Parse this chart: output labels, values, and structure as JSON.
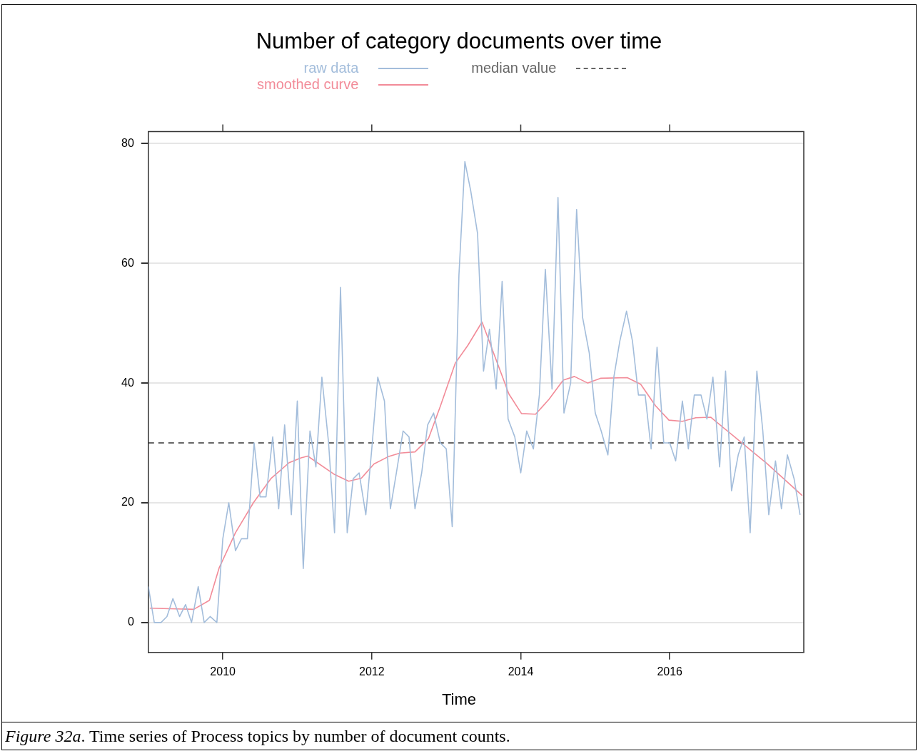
{
  "chart_data": {
    "type": "line",
    "title": "Number of category documents over time",
    "xlabel": "Time",
    "legend": "top",
    "grid": "y",
    "xlim": [
      2009,
      2017.8
    ],
    "xticks": [
      2010,
      2012,
      2014,
      2016
    ],
    "ylim": [
      -5,
      82
    ],
    "yticks": [
      0,
      20,
      40,
      60,
      80
    ],
    "series": [
      {
        "name": "raw data",
        "color": "#a3bddb",
        "x": [
          2009,
          2009.08,
          2009.17,
          2009.25,
          2009.33,
          2009.42,
          2009.5,
          2009.58,
          2009.67,
          2009.75,
          2009.83,
          2009.92,
          2010,
          2010.08,
          2010.17,
          2010.25,
          2010.33,
          2010.42,
          2010.5,
          2010.58,
          2010.67,
          2010.75,
          2010.83,
          2010.92,
          2011,
          2011.08,
          2011.17,
          2011.25,
          2011.33,
          2011.42,
          2011.5,
          2011.58,
          2011.67,
          2011.75,
          2011.83,
          2011.92,
          2012,
          2012.08,
          2012.17,
          2012.25,
          2012.33,
          2012.42,
          2012.5,
          2012.58,
          2012.67,
          2012.75,
          2012.83,
          2012.92,
          2013,
          2013.08,
          2013.17,
          2013.25,
          2013.33,
          2013.42,
          2013.5,
          2013.58,
          2013.67,
          2013.75,
          2013.83,
          2013.92,
          2014,
          2014.08,
          2014.17,
          2014.25,
          2014.33,
          2014.42,
          2014.5,
          2014.58,
          2014.67,
          2014.75,
          2014.83,
          2014.92,
          2015,
          2015.08,
          2015.17,
          2015.25,
          2015.33,
          2015.42,
          2015.5,
          2015.58,
          2015.67,
          2015.75,
          2015.83,
          2015.92,
          2016,
          2016.08,
          2016.17,
          2016.25,
          2016.33,
          2016.42,
          2016.5,
          2016.58,
          2016.67,
          2016.75,
          2016.83,
          2016.92,
          2017,
          2017.08,
          2017.17,
          2017.25,
          2017.33,
          2017.42,
          2017.5,
          2017.58,
          2017.67,
          2017.75
        ],
        "values": [
          6,
          0,
          0,
          1,
          4,
          1,
          3,
          0,
          6,
          0,
          1,
          0,
          14,
          20,
          12,
          14,
          14,
          30,
          21,
          21,
          31,
          19,
          33,
          18,
          37,
          9,
          32,
          26,
          41,
          30,
          15,
          56,
          15,
          24,
          25,
          18,
          29,
          41,
          37,
          19,
          25,
          32,
          31,
          19,
          25,
          33,
          35,
          30,
          29,
          16,
          58,
          77,
          72,
          65,
          42,
          49,
          39,
          57,
          34,
          31,
          25,
          32,
          29,
          38,
          59,
          39,
          71,
          35,
          40,
          69,
          51,
          45,
          35,
          32,
          28,
          41,
          47,
          52,
          47,
          38,
          38,
          29,
          46,
          30,
          30,
          27,
          37,
          29,
          38,
          38,
          34,
          41,
          26,
          42,
          22,
          28,
          31,
          15,
          42,
          32,
          18,
          27,
          19,
          28,
          24,
          18
        ]
      },
      {
        "name": "smoothed curve",
        "color": "#f28b98",
        "x": [
          2009.02,
          2009.61,
          2009.82,
          2009.95,
          2010.17,
          2010.41,
          2010.65,
          2010.89,
          2011.05,
          2011.14,
          2011.49,
          2011.69,
          2011.86,
          2012.03,
          2012.22,
          2012.38,
          2012.58,
          2012.76,
          2012.92,
          2013.12,
          2013.29,
          2013.48,
          2013.84,
          2014.01,
          2014.2,
          2014.38,
          2014.57,
          2014.72,
          2014.9,
          2015.07,
          2015.43,
          2015.61,
          2015.81,
          2015.99,
          2016.17,
          2016.35,
          2016.55,
          2016.95,
          2017.31,
          2017.78
        ],
        "values": [
          2.4,
          2.2,
          3.7,
          9.1,
          15,
          20,
          24.1,
          26.7,
          27.5,
          27.8,
          24.8,
          23.6,
          24.1,
          26.5,
          27.7,
          28.3,
          28.5,
          30.7,
          36.1,
          43.3,
          46.3,
          50.2,
          38.2,
          34.9,
          34.8,
          37.3,
          40.5,
          41.1,
          40,
          40.8,
          40.9,
          39.8,
          36.2,
          33.8,
          33.6,
          34.2,
          34.3,
          30.2,
          26.5,
          21.2
        ]
      }
    ],
    "ref_lines": [
      {
        "axis": "y",
        "value": 30,
        "label": "median value",
        "color": "#666666",
        "line_style": "dashed"
      }
    ],
    "annotations": [
      "Figure 32a. Time series of Process topics by number of document counts."
    ]
  }
}
